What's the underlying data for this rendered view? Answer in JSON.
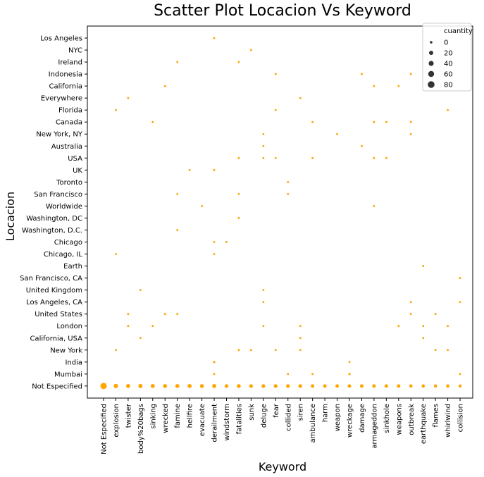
{
  "chart_data": {
    "type": "scatter",
    "title": "Scatter Plot Locacion Vs Keyword",
    "xlabel": "Keyword",
    "ylabel": "Locacion",
    "x_categories": [
      "Not Especified",
      "explosion",
      "twister",
      "body%20bags",
      "sinking",
      "wrecked",
      "famine",
      "hellfire",
      "evacuate",
      "derailment",
      "windstorm",
      "fatalities",
      "sunk",
      "deluge",
      "fear",
      "collided",
      "siren",
      "ambulance",
      "harm",
      "weapon",
      "wreckage",
      "damage",
      "armageddon",
      "sinkhole",
      "weapons",
      "outbreak",
      "earthquake",
      "flames",
      "whirlwind",
      "collision"
    ],
    "y_categories": [
      "Los Angeles",
      "NYC",
      "Ireland",
      "Indonesia",
      "California",
      "Everywhere",
      "Florida",
      "Canada",
      "New York, NY",
      "Australia",
      "USA",
      "UK",
      "Toronto",
      "San Francisco",
      "Worldwide",
      "Washington, DC",
      "Washington, D.C.",
      "Chicago",
      "Chicago, IL",
      "Earth",
      "San Francisco, CA",
      "United Kingdom",
      "Los Angeles, CA",
      "United States",
      "London",
      "California, USA",
      "New York",
      "India",
      "Mumbai",
      "Not Especified"
    ],
    "legend": {
      "title": "cuantity",
      "values": [
        0,
        20,
        40,
        60,
        80
      ],
      "placement": "top-right"
    },
    "color": "#FFA500",
    "legend_color": "#333333",
    "grid": false,
    "points": [
      {
        "x": "derailment",
        "y": "Los Angeles",
        "size": 1
      },
      {
        "x": "sunk",
        "y": "NYC",
        "size": 1
      },
      {
        "x": "famine",
        "y": "Ireland",
        "size": 1
      },
      {
        "x": "fatalities",
        "y": "Ireland",
        "size": 1
      },
      {
        "x": "fear",
        "y": "Indonesia",
        "size": 1
      },
      {
        "x": "damage",
        "y": "Indonesia",
        "size": 1
      },
      {
        "x": "outbreak",
        "y": "Indonesia",
        "size": 1
      },
      {
        "x": "wrecked",
        "y": "California",
        "size": 1
      },
      {
        "x": "armageddon",
        "y": "California",
        "size": 1
      },
      {
        "x": "weapons",
        "y": "California",
        "size": 1
      },
      {
        "x": "twister",
        "y": "Everywhere",
        "size": 1
      },
      {
        "x": "siren",
        "y": "Everywhere",
        "size": 1
      },
      {
        "x": "explosion",
        "y": "Florida",
        "size": 1
      },
      {
        "x": "fear",
        "y": "Florida",
        "size": 1
      },
      {
        "x": "whirlwind",
        "y": "Florida",
        "size": 1
      },
      {
        "x": "sinking",
        "y": "Canada",
        "size": 1
      },
      {
        "x": "ambulance",
        "y": "Canada",
        "size": 1
      },
      {
        "x": "armageddon",
        "y": "Canada",
        "size": 1
      },
      {
        "x": "sinkhole",
        "y": "Canada",
        "size": 1
      },
      {
        "x": "outbreak",
        "y": "Canada",
        "size": 1
      },
      {
        "x": "deluge",
        "y": "New York, NY",
        "size": 1
      },
      {
        "x": "weapon",
        "y": "New York, NY",
        "size": 1
      },
      {
        "x": "outbreak",
        "y": "New York, NY",
        "size": 1
      },
      {
        "x": "deluge",
        "y": "Australia",
        "size": 1
      },
      {
        "x": "damage",
        "y": "Australia",
        "size": 1
      },
      {
        "x": "fatalities",
        "y": "USA",
        "size": 1
      },
      {
        "x": "deluge",
        "y": "USA",
        "size": 1
      },
      {
        "x": "fear",
        "y": "USA",
        "size": 1
      },
      {
        "x": "ambulance",
        "y": "USA",
        "size": 1
      },
      {
        "x": "armageddon",
        "y": "USA",
        "size": 1
      },
      {
        "x": "sinkhole",
        "y": "USA",
        "size": 1
      },
      {
        "x": "hellfire",
        "y": "UK",
        "size": 1
      },
      {
        "x": "derailment",
        "y": "UK",
        "size": 1
      },
      {
        "x": "collided",
        "y": "Toronto",
        "size": 1
      },
      {
        "x": "famine",
        "y": "San Francisco",
        "size": 1
      },
      {
        "x": "fatalities",
        "y": "San Francisco",
        "size": 1
      },
      {
        "x": "collided",
        "y": "San Francisco",
        "size": 1
      },
      {
        "x": "evacuate",
        "y": "Worldwide",
        "size": 1
      },
      {
        "x": "armageddon",
        "y": "Worldwide",
        "size": 1
      },
      {
        "x": "fatalities",
        "y": "Washington, DC",
        "size": 1
      },
      {
        "x": "famine",
        "y": "Washington, D.C.",
        "size": 1
      },
      {
        "x": "derailment",
        "y": "Chicago",
        "size": 1
      },
      {
        "x": "windstorm",
        "y": "Chicago",
        "size": 1
      },
      {
        "x": "explosion",
        "y": "Chicago, IL",
        "size": 1
      },
      {
        "x": "derailment",
        "y": "Chicago, IL",
        "size": 1
      },
      {
        "x": "earthquake",
        "y": "Earth",
        "size": 1
      },
      {
        "x": "collision",
        "y": "San Francisco, CA",
        "size": 1
      },
      {
        "x": "body%20bags",
        "y": "United Kingdom",
        "size": 1
      },
      {
        "x": "deluge",
        "y": "United Kingdom",
        "size": 1
      },
      {
        "x": "deluge",
        "y": "Los Angeles, CA",
        "size": 1
      },
      {
        "x": "outbreak",
        "y": "Los Angeles, CA",
        "size": 1
      },
      {
        "x": "collision",
        "y": "Los Angeles, CA",
        "size": 1
      },
      {
        "x": "twister",
        "y": "United States",
        "size": 1
      },
      {
        "x": "wrecked",
        "y": "United States",
        "size": 1
      },
      {
        "x": "famine",
        "y": "United States",
        "size": 1
      },
      {
        "x": "outbreak",
        "y": "United States",
        "size": 1
      },
      {
        "x": "flames",
        "y": "United States",
        "size": 1
      },
      {
        "x": "twister",
        "y": "London",
        "size": 1
      },
      {
        "x": "sinking",
        "y": "London",
        "size": 1
      },
      {
        "x": "deluge",
        "y": "London",
        "size": 1
      },
      {
        "x": "siren",
        "y": "London",
        "size": 1
      },
      {
        "x": "weapons",
        "y": "London",
        "size": 1
      },
      {
        "x": "earthquake",
        "y": "London",
        "size": 1
      },
      {
        "x": "whirlwind",
        "y": "London",
        "size": 1
      },
      {
        "x": "body%20bags",
        "y": "California, USA",
        "size": 1
      },
      {
        "x": "siren",
        "y": "California, USA",
        "size": 1
      },
      {
        "x": "earthquake",
        "y": "California, USA",
        "size": 1
      },
      {
        "x": "explosion",
        "y": "New York",
        "size": 1
      },
      {
        "x": "fatalities",
        "y": "New York",
        "size": 1
      },
      {
        "x": "sunk",
        "y": "New York",
        "size": 1
      },
      {
        "x": "fear",
        "y": "New York",
        "size": 1
      },
      {
        "x": "siren",
        "y": "New York",
        "size": 1
      },
      {
        "x": "flames",
        "y": "New York",
        "size": 1
      },
      {
        "x": "whirlwind",
        "y": "New York",
        "size": 1
      },
      {
        "x": "derailment",
        "y": "India",
        "size": 2
      },
      {
        "x": "wreckage",
        "y": "India",
        "size": 1
      },
      {
        "x": "derailment",
        "y": "Mumbai",
        "size": 1
      },
      {
        "x": "collided",
        "y": "Mumbai",
        "size": 1
      },
      {
        "x": "ambulance",
        "y": "Mumbai",
        "size": 1
      },
      {
        "x": "wreckage",
        "y": "Mumbai",
        "size": 2
      },
      {
        "x": "collision",
        "y": "Mumbai",
        "size": 1
      },
      {
        "x": "Not Especified",
        "y": "Not Especified",
        "size": 70
      },
      {
        "x": "explosion",
        "y": "Not Especified",
        "size": 25
      },
      {
        "x": "twister",
        "y": "Not Especified",
        "size": 20
      },
      {
        "x": "body%20bags",
        "y": "Not Especified",
        "size": 22
      },
      {
        "x": "sinking",
        "y": "Not Especified",
        "size": 20
      },
      {
        "x": "wrecked",
        "y": "Not Especified",
        "size": 18
      },
      {
        "x": "famine",
        "y": "Not Especified",
        "size": 20
      },
      {
        "x": "hellfire",
        "y": "Not Especified",
        "size": 20
      },
      {
        "x": "evacuate",
        "y": "Not Especified",
        "size": 18
      },
      {
        "x": "derailment",
        "y": "Not Especified",
        "size": 20
      },
      {
        "x": "windstorm",
        "y": "Not Especified",
        "size": 15
      },
      {
        "x": "fatalities",
        "y": "Not Especified",
        "size": 18
      },
      {
        "x": "sunk",
        "y": "Not Especified",
        "size": 15
      },
      {
        "x": "deluge",
        "y": "Not Especified",
        "size": 15
      },
      {
        "x": "fear",
        "y": "Not Especified",
        "size": 15
      },
      {
        "x": "collided",
        "y": "Not Especified",
        "size": 15
      },
      {
        "x": "siren",
        "y": "Not Especified",
        "size": 15
      },
      {
        "x": "ambulance",
        "y": "Not Especified",
        "size": 12
      },
      {
        "x": "harm",
        "y": "Not Especified",
        "size": 12
      },
      {
        "x": "weapon",
        "y": "Not Especified",
        "size": 12
      },
      {
        "x": "wreckage",
        "y": "Not Especified",
        "size": 12
      },
      {
        "x": "damage",
        "y": "Not Especified",
        "size": 12
      },
      {
        "x": "armageddon",
        "y": "Not Especified",
        "size": 12
      },
      {
        "x": "sinkhole",
        "y": "Not Especified",
        "size": 12
      },
      {
        "x": "weapons",
        "y": "Not Especified",
        "size": 12
      },
      {
        "x": "outbreak",
        "y": "Not Especified",
        "size": 10
      },
      {
        "x": "earthquake",
        "y": "Not Especified",
        "size": 10
      },
      {
        "x": "flames",
        "y": "Not Especified",
        "size": 10
      },
      {
        "x": "whirlwind",
        "y": "Not Especified",
        "size": 10
      },
      {
        "x": "collision",
        "y": "Not Especified",
        "size": 8
      }
    ]
  }
}
